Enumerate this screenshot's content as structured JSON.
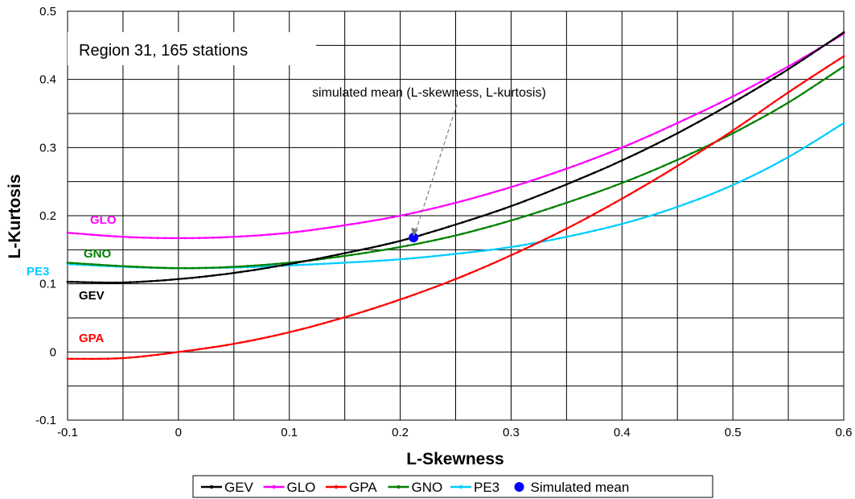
{
  "chart_data": {
    "type": "line",
    "title": "",
    "xlabel": "L-Skewness",
    "ylabel": "L-Kurtosis",
    "xlim": [
      -0.1,
      0.6
    ],
    "ylim": [
      -0.1,
      0.5
    ],
    "x_ticks": [
      -0.1,
      0,
      0.1,
      0.2,
      0.3,
      0.4,
      0.5,
      0.6
    ],
    "x_tick_labels": [
      "-0.1",
      "0",
      "0.1",
      "0.2",
      "0.3",
      "0.4",
      "0.5",
      "0.6"
    ],
    "y_ticks": [
      -0.1,
      0,
      0.1,
      0.2,
      0.3,
      0.4,
      0.5
    ],
    "y_tick_labels": [
      "-0.1",
      "0",
      "0.1",
      "0.2",
      "0.3",
      "0.4",
      "0.5"
    ],
    "grid": true,
    "legend_position": "bottom",
    "x": [
      -0.1,
      -0.05,
      0,
      0.05,
      0.1,
      0.15,
      0.2,
      0.25,
      0.3,
      0.35,
      0.4,
      0.45,
      0.5,
      0.55,
      0.6
    ],
    "series": [
      {
        "name": "GEV",
        "color": "#000000",
        "values": [
          0.103,
          0.102,
          0.107,
          0.116,
          0.129,
          0.145,
          0.163,
          0.187,
          0.214,
          0.246,
          0.281,
          0.321,
          0.366,
          0.415,
          0.469
        ]
      },
      {
        "name": "GLO",
        "color": "#ff00ff",
        "values": [
          0.175,
          0.169,
          0.167,
          0.169,
          0.175,
          0.186,
          0.2,
          0.219,
          0.242,
          0.269,
          0.3,
          0.336,
          0.375,
          0.419,
          0.467
        ]
      },
      {
        "name": "GPA",
        "color": "#ff0000",
        "values": [
          -0.01,
          -0.009,
          0.0,
          0.012,
          0.029,
          0.051,
          0.077,
          0.107,
          0.142,
          0.181,
          0.225,
          0.273,
          0.325,
          0.381,
          0.434
        ]
      },
      {
        "name": "GNO",
        "color": "#008000",
        "values": [
          0.131,
          0.126,
          0.123,
          0.125,
          0.131,
          0.141,
          0.154,
          0.171,
          0.193,
          0.219,
          0.248,
          0.282,
          0.321,
          0.366,
          0.419
        ]
      },
      {
        "name": "PE3",
        "color": "#00ccff",
        "values": [
          0.129,
          0.125,
          0.123,
          0.124,
          0.127,
          0.131,
          0.136,
          0.144,
          0.154,
          0.169,
          0.188,
          0.213,
          0.245,
          0.286,
          0.336
        ]
      }
    ],
    "points": [
      {
        "name": "Simulated mean",
        "color": "#0000ff",
        "x": 0.212,
        "y": 0.168
      }
    ],
    "curve_labels": [
      {
        "text": "GLO",
        "color": "#ff00ff"
      },
      {
        "text": "GNO",
        "color": "#008000"
      },
      {
        "text": "PE3",
        "color": "#00ccff"
      },
      {
        "text": "GEV",
        "color": "#000000"
      },
      {
        "text": "GPA",
        "color": "#ff0000"
      }
    ],
    "annotations": {
      "region_box": "Region 31, 165 stations",
      "arrow_note": "simulated mean (L-skewness, L-kurtosis)"
    }
  }
}
